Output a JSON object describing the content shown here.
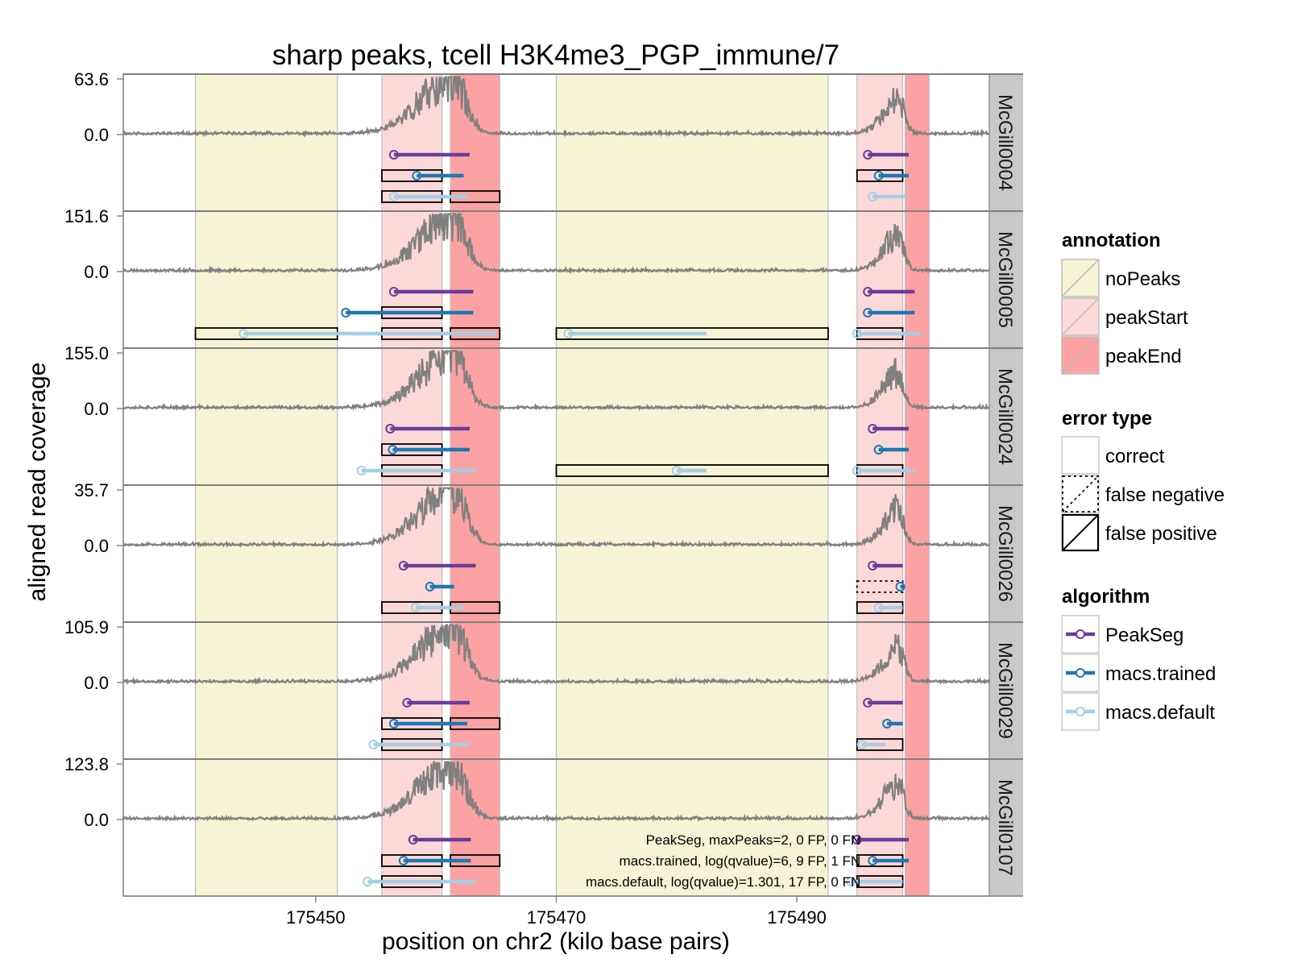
{
  "chart_data": {
    "type": "line",
    "title": "sharp peaks, tcell H3K4me3_PGP_immune/7",
    "xlabel": "position on chr2 (kilo base pairs)",
    "ylabel": "aligned read coverage",
    "xlim": [
      175434,
      175506
    ],
    "x_ticks": [
      175450,
      175470,
      175490
    ],
    "x_tick_labels": [
      "175450",
      "175470",
      "175490"
    ],
    "colors": {
      "coverage": "#808080",
      "noPeaks": "#f6f4d4",
      "peakStart": "#fdd8d8",
      "peakEnd": "#fca2a2",
      "PeakSeg": "#6a3d9a",
      "macs.trained": "#1f78b4",
      "macs.default": "#a6cee3",
      "strip": "#c8c8c8"
    },
    "annotations": [
      {
        "type": "noPeaks",
        "start": 175440.0,
        "end": 175451.8
      },
      {
        "type": "peakStart",
        "start": 175455.5,
        "end": 175460.5
      },
      {
        "type": "peakEnd",
        "start": 175461.2,
        "end": 175465.3
      },
      {
        "type": "noPeaks",
        "start": 175470.0,
        "end": 175492.6
      },
      {
        "type": "peakStart",
        "start": 175495.0,
        "end": 175498.8
      },
      {
        "type": "peakEnd",
        "start": 175499.0,
        "end": 175501.0
      }
    ],
    "samples": [
      {
        "name": "McGill0004",
        "ymax_label": "63.6",
        "zero_label": "0.0",
        "seed": 11,
        "peaks": [
          {
            "algorithm": "PeakSeg",
            "start": 175456.5,
            "end": 175462.8
          },
          {
            "algorithm": "PeakSeg",
            "start": 175495.9,
            "end": 175499.3
          },
          {
            "algorithm": "macs.trained",
            "start": 175458.4,
            "end": 175462.3
          },
          {
            "algorithm": "macs.trained",
            "start": 175496.8,
            "end": 175499.3
          },
          {
            "algorithm": "macs.default",
            "start": 175456.5,
            "end": 175462.7
          },
          {
            "algorithm": "macs.default",
            "start": 175496.3,
            "end": 175499.1
          }
        ],
        "errors": [
          {
            "algorithm": "macs.trained",
            "kind": "false positive",
            "start": 175455.5,
            "end": 175460.5
          },
          {
            "algorithm": "macs.trained",
            "kind": "false positive",
            "start": 175495.0,
            "end": 175498.8
          },
          {
            "algorithm": "macs.default",
            "kind": "false positive",
            "start": 175455.5,
            "end": 175460.5
          },
          {
            "algorithm": "macs.default",
            "kind": "false positive",
            "start": 175461.2,
            "end": 175465.3
          }
        ]
      },
      {
        "name": "McGill0005",
        "ymax_label": "151.6",
        "zero_label": "0.0",
        "seed": 23,
        "peaks": [
          {
            "algorithm": "PeakSeg",
            "start": 175456.5,
            "end": 175463.1
          },
          {
            "algorithm": "PeakSeg",
            "start": 175495.9,
            "end": 175499.8
          },
          {
            "algorithm": "macs.trained",
            "start": 175452.5,
            "end": 175463.1
          },
          {
            "algorithm": "macs.trained",
            "start": 175495.9,
            "end": 175499.8
          },
          {
            "algorithm": "macs.default",
            "start": 175444.0,
            "end": 175465.0
          },
          {
            "algorithm": "macs.default",
            "start": 175471.0,
            "end": 175482.5
          },
          {
            "algorithm": "macs.default",
            "start": 175495.0,
            "end": 175500.3
          }
        ],
        "errors": [
          {
            "algorithm": "macs.trained",
            "kind": "false positive",
            "start": 175455.5,
            "end": 175460.5
          },
          {
            "algorithm": "macs.default",
            "kind": "false positive",
            "start": 175440.0,
            "end": 175451.8
          },
          {
            "algorithm": "macs.default",
            "kind": "false positive",
            "start": 175455.5,
            "end": 175460.5
          },
          {
            "algorithm": "macs.default",
            "kind": "false positive",
            "start": 175461.2,
            "end": 175465.3
          },
          {
            "algorithm": "macs.default",
            "kind": "false positive",
            "start": 175470.0,
            "end": 175492.6
          },
          {
            "algorithm": "macs.default",
            "kind": "false positive",
            "start": 175495.0,
            "end": 175498.8
          }
        ]
      },
      {
        "name": "McGill0024",
        "ymax_label": "155.0",
        "zero_label": "0.0",
        "seed": 37,
        "peaks": [
          {
            "algorithm": "PeakSeg",
            "start": 175456.2,
            "end": 175462.8
          },
          {
            "algorithm": "PeakSeg",
            "start": 175496.3,
            "end": 175499.3
          },
          {
            "algorithm": "macs.trained",
            "start": 175456.4,
            "end": 175462.8
          },
          {
            "algorithm": "macs.trained",
            "start": 175496.8,
            "end": 175499.3
          },
          {
            "algorithm": "macs.default",
            "start": 175453.8,
            "end": 175463.3
          },
          {
            "algorithm": "macs.default",
            "start": 175480.0,
            "end": 175482.5
          },
          {
            "algorithm": "macs.default",
            "start": 175495.0,
            "end": 175499.8
          }
        ],
        "errors": [
          {
            "algorithm": "macs.trained",
            "kind": "false positive",
            "start": 175455.5,
            "end": 175460.5
          },
          {
            "algorithm": "macs.default",
            "kind": "false positive",
            "start": 175455.5,
            "end": 175460.5
          },
          {
            "algorithm": "macs.default",
            "kind": "false positive",
            "start": 175470.0,
            "end": 175492.6
          },
          {
            "algorithm": "macs.default",
            "kind": "false positive",
            "start": 175495.0,
            "end": 175498.8
          }
        ]
      },
      {
        "name": "McGill0026",
        "ymax_label": "35.7",
        "zero_label": "0.0",
        "seed": 53,
        "peaks": [
          {
            "algorithm": "PeakSeg",
            "start": 175457.3,
            "end": 175463.3
          },
          {
            "algorithm": "PeakSeg",
            "start": 175496.3,
            "end": 175498.8
          },
          {
            "algorithm": "macs.trained",
            "start": 175459.5,
            "end": 175461.5
          },
          {
            "algorithm": "macs.trained",
            "start": 175498.6,
            "end": 175498.9
          },
          {
            "algorithm": "macs.default",
            "start": 175458.3,
            "end": 175462.3
          },
          {
            "algorithm": "macs.default",
            "start": 175496.8,
            "end": 175498.8
          }
        ],
        "errors": [
          {
            "algorithm": "macs.trained",
            "kind": "false negative",
            "start": 175495.0,
            "end": 175498.8
          },
          {
            "algorithm": "macs.default",
            "kind": "false positive",
            "start": 175455.5,
            "end": 175460.5
          },
          {
            "algorithm": "macs.default",
            "kind": "false positive",
            "start": 175461.2,
            "end": 175465.3
          },
          {
            "algorithm": "macs.default",
            "kind": "false positive",
            "start": 175495.0,
            "end": 175498.8
          }
        ]
      },
      {
        "name": "McGill0029",
        "ymax_label": "105.9",
        "zero_label": "0.0",
        "seed": 71,
        "peaks": [
          {
            "algorithm": "PeakSeg",
            "start": 175457.6,
            "end": 175462.8
          },
          {
            "algorithm": "PeakSeg",
            "start": 175495.9,
            "end": 175498.8
          },
          {
            "algorithm": "macs.trained",
            "start": 175456.5,
            "end": 175462.6
          },
          {
            "algorithm": "macs.trained",
            "start": 175497.5,
            "end": 175498.8
          },
          {
            "algorithm": "macs.default",
            "start": 175454.8,
            "end": 175462.8
          },
          {
            "algorithm": "macs.default",
            "start": 175495.4,
            "end": 175497.4
          }
        ],
        "errors": [
          {
            "algorithm": "macs.trained",
            "kind": "false positive",
            "start": 175455.5,
            "end": 175460.5
          },
          {
            "algorithm": "macs.trained",
            "kind": "false positive",
            "start": 175461.2,
            "end": 175465.3
          },
          {
            "algorithm": "macs.default",
            "kind": "false positive",
            "start": 175455.5,
            "end": 175460.5
          },
          {
            "algorithm": "macs.default",
            "kind": "false positive",
            "start": 175495.0,
            "end": 175498.8
          }
        ]
      },
      {
        "name": "McGill0107",
        "ymax_label": "123.8",
        "zero_label": "0.0",
        "seed": 89,
        "peaks": [
          {
            "algorithm": "PeakSeg",
            "start": 175458.1,
            "end": 175462.9
          },
          {
            "algorithm": "PeakSeg",
            "start": 175495.0,
            "end": 175499.3
          },
          {
            "algorithm": "macs.trained",
            "start": 175457.3,
            "end": 175462.9
          },
          {
            "algorithm": "macs.trained",
            "start": 175496.3,
            "end": 175499.3
          },
          {
            "algorithm": "macs.default",
            "start": 175454.3,
            "end": 175463.3
          },
          {
            "algorithm": "macs.default",
            "start": 175494.5,
            "end": 175498.8
          }
        ],
        "errors": [
          {
            "algorithm": "macs.trained",
            "kind": "false positive",
            "start": 175455.5,
            "end": 175460.5
          },
          {
            "algorithm": "macs.trained",
            "kind": "false positive",
            "start": 175461.2,
            "end": 175465.3
          },
          {
            "algorithm": "macs.trained",
            "kind": "false positive",
            "start": 175495.0,
            "end": 175498.8
          },
          {
            "algorithm": "macs.default",
            "kind": "false positive",
            "start": 175455.5,
            "end": 175460.5
          },
          {
            "algorithm": "macs.default",
            "kind": "false positive",
            "start": 175495.0,
            "end": 175498.8
          }
        ]
      }
    ],
    "summary_text": [
      "PeakSeg, maxPeaks=2,  0 FP,  0 FN",
      "macs.trained, log(qvalue)=6,  9 FP,  1 FN",
      "macs.default, log(qvalue)=1.301, 17 FP,  0 FN"
    ],
    "legend": {
      "annotation": {
        "title": "annotation",
        "items": [
          "noPeaks",
          "peakStart",
          "peakEnd"
        ]
      },
      "error_type": {
        "title": "error type",
        "items": [
          "correct",
          "false negative",
          "false positive"
        ]
      },
      "algorithm": {
        "title": "algorithm",
        "items": [
          "PeakSeg",
          "macs.trained",
          "macs.default"
        ]
      },
      "placement": "right"
    }
  }
}
